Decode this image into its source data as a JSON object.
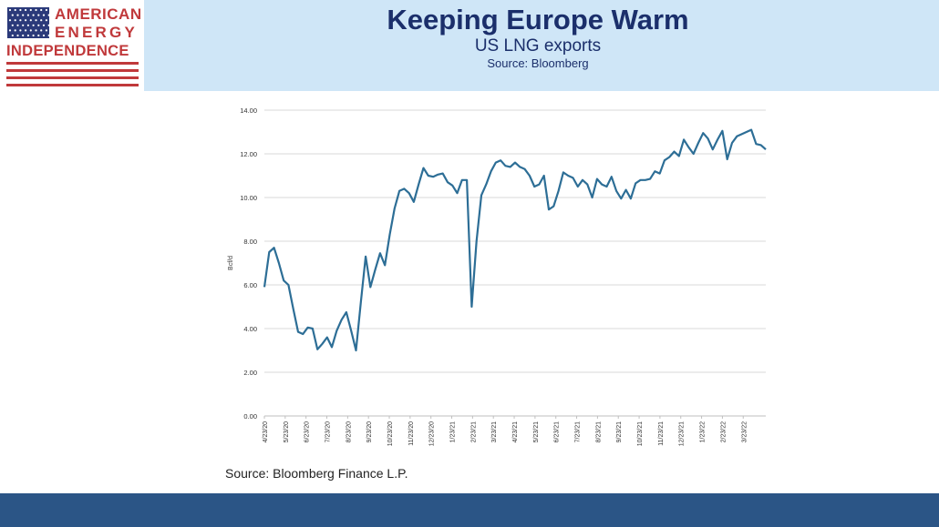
{
  "logo": {
    "line1": "AMERICAN",
    "line2": "ENERGY",
    "line3": "INDEPENDENCE",
    "red": "#c0393b",
    "blue": "#2b3a7a"
  },
  "header": {
    "title": "Keeping Europe Warm",
    "subtitle": "US LNG exports",
    "source": "Source: Bloomberg"
  },
  "chart_source": "Source: Bloomberg Finance L.P.",
  "colors": {
    "header_bg": "#cfe6f7",
    "title": "#1b2f6b",
    "line": "#2d6e96",
    "footer": "#2b5586"
  },
  "chart_data": {
    "type": "line",
    "title": "",
    "xlabel": "",
    "ylabel": "Bcf/d",
    "ylim": [
      0,
      14
    ],
    "grid": true,
    "y_ticks": [
      "0.00",
      "2.00",
      "4.00",
      "6.00",
      "8.00",
      "10.00",
      "12.00",
      "14.00"
    ],
    "x_tick_labels": [
      "4/23/20",
      "5/23/20",
      "6/23/20",
      "7/23/20",
      "8/23/20",
      "9/23/20",
      "10/23/20",
      "11/23/20",
      "12/23/20",
      "1/23/21",
      "2/23/21",
      "3/23/21",
      "4/23/21",
      "5/23/21",
      "6/23/21",
      "7/23/21",
      "8/23/21",
      "9/23/21",
      "10/23/21",
      "11/23/21",
      "12/23/21",
      "1/23/22",
      "2/23/22",
      "3/23/22"
    ],
    "series": [
      {
        "name": "",
        "values": [
          5.9,
          7.5,
          7.7,
          7.0,
          6.2,
          6.0,
          4.9,
          3.85,
          3.75,
          4.05,
          4.0,
          3.05,
          3.3,
          3.6,
          3.15,
          3.9,
          4.4,
          4.75,
          3.9,
          3.0,
          5.2,
          7.3,
          5.9,
          6.7,
          7.45,
          6.9,
          8.3,
          9.5,
          10.3,
          10.4,
          10.2,
          9.8,
          10.6,
          11.35,
          11.0,
          10.95,
          11.05,
          11.1,
          10.7,
          10.55,
          10.2,
          10.8,
          10.8,
          5.0,
          8.0,
          10.1,
          10.6,
          11.2,
          11.6,
          11.7,
          11.45,
          11.4,
          11.6,
          11.4,
          11.3,
          11.0,
          10.5,
          10.6,
          11.0,
          9.45,
          9.6,
          10.3,
          11.15,
          11.0,
          10.9,
          10.5,
          10.8,
          10.6,
          10.0,
          10.85,
          10.6,
          10.5,
          10.95,
          10.3,
          9.95,
          10.35,
          9.95,
          10.65,
          10.8,
          10.8,
          10.85,
          11.2,
          11.1,
          11.7,
          11.85,
          12.1,
          11.9,
          12.65,
          12.3,
          12.0,
          12.5,
          12.95,
          12.7,
          12.2,
          12.65,
          13.05,
          11.75,
          12.5,
          12.8,
          12.9,
          13.0,
          13.1,
          12.45,
          12.4,
          12.2
        ]
      }
    ]
  }
}
